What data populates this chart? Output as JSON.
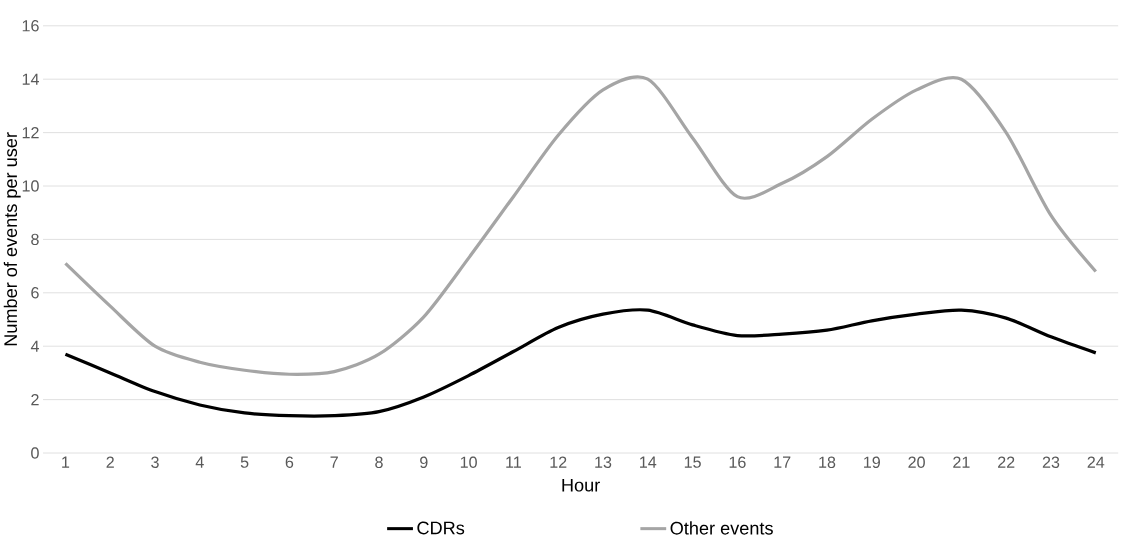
{
  "chart_data": {
    "type": "line",
    "xlabel": "Hour",
    "ylabel": "Number of events per user",
    "categories": [
      "1",
      "2",
      "3",
      "4",
      "5",
      "6",
      "7",
      "8",
      "9",
      "10",
      "11",
      "12",
      "13",
      "14",
      "15",
      "16",
      "17",
      "18",
      "19",
      "20",
      "21",
      "22",
      "23",
      "24"
    ],
    "series": [
      {
        "name": "CDRs",
        "color": "#000000",
        "values": [
          3.7,
          3.0,
          2.3,
          1.8,
          1.5,
          1.4,
          1.4,
          1.55,
          2.1,
          2.9,
          3.8,
          4.7,
          5.2,
          5.35,
          4.8,
          4.4,
          4.45,
          4.6,
          4.95,
          5.2,
          5.35,
          5.05,
          4.35,
          3.75
        ]
      },
      {
        "name": "Other events",
        "color": "#a5a5a5",
        "values": [
          7.1,
          5.5,
          4.0,
          3.4,
          3.1,
          2.95,
          3.05,
          3.7,
          5.1,
          7.3,
          9.6,
          11.9,
          13.6,
          14.0,
          11.8,
          9.6,
          10.1,
          11.1,
          12.5,
          13.6,
          14.0,
          12.0,
          8.9,
          6.8
        ]
      }
    ],
    "ylim": [
      0,
      16
    ],
    "yticks": [
      0,
      2,
      4,
      6,
      8,
      10,
      12,
      14,
      16
    ],
    "grid": "y",
    "legend": "bottom",
    "marker": "none",
    "line_style": "solid"
  }
}
